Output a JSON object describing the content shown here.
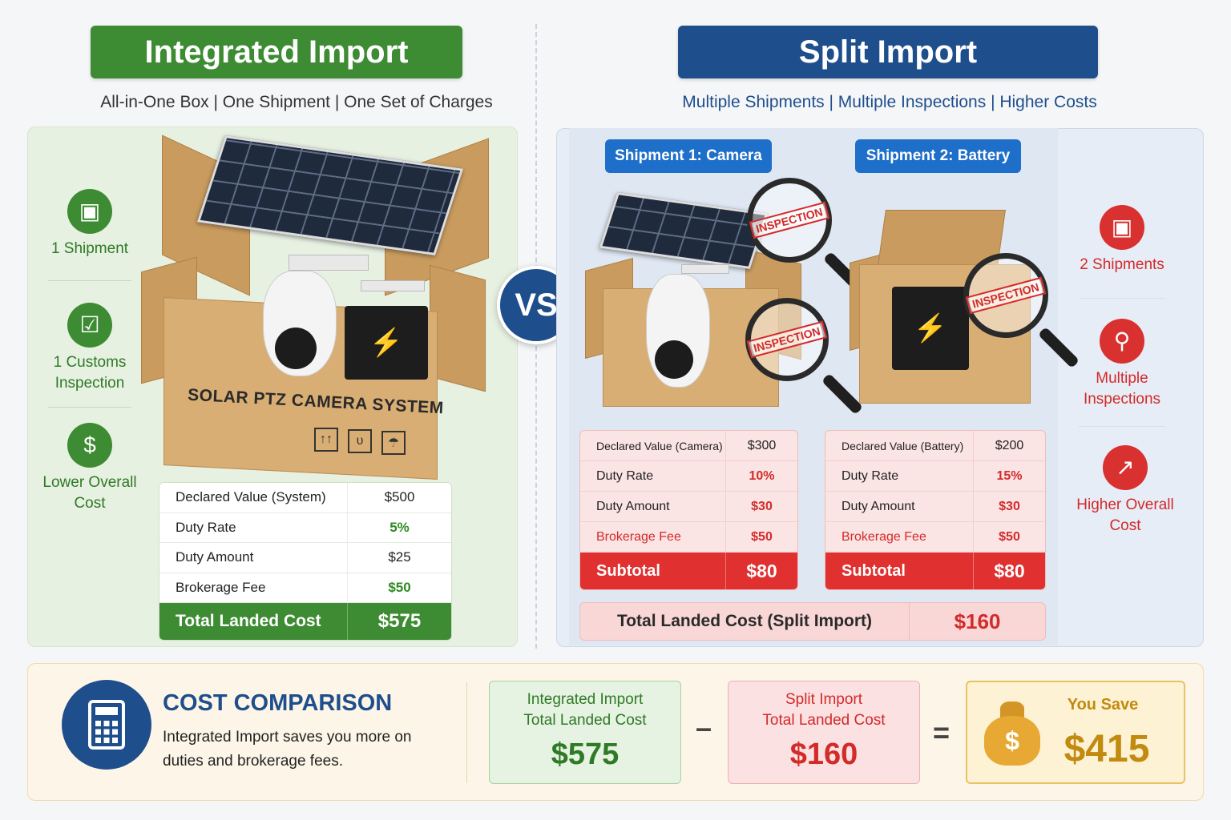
{
  "integrated": {
    "title": "Integrated Import",
    "subtitle": "All-in-One Box | One Shipment | One Set of Charges",
    "features": [
      {
        "icon": "box-icon",
        "label_line1": "1 Shipment",
        "label_line2": ""
      },
      {
        "icon": "clipboard-check-icon",
        "label_line1": "1 Customs",
        "label_line2": "Inspection"
      },
      {
        "icon": "dollar-icon",
        "label_line1": "Lower Overall",
        "label_line2": "Cost"
      }
    ],
    "box_label": "SOLAR PTZ CAMERA SYSTEM",
    "table": {
      "rows": [
        {
          "label": "Declared Value (System)",
          "value": "$500"
        },
        {
          "label": "Duty Rate",
          "value": "5%"
        },
        {
          "label": "Duty Amount",
          "value": "$25"
        },
        {
          "label": "Brokerage Fee",
          "value": "$50"
        }
      ],
      "total_label": "Total Landed Cost",
      "total_value": "$575"
    }
  },
  "vs_label": "VS",
  "split": {
    "title": "Split Import",
    "subtitle": "Multiple Shipments | Multiple Inspections | Higher Costs",
    "inspection_stamp": "INSPECTION",
    "shipment1": {
      "label": "Shipment 1: Camera",
      "rows": [
        {
          "label": "Declared Value (Camera)",
          "value": "$300"
        },
        {
          "label": "Duty Rate",
          "value": "10%"
        },
        {
          "label": "Duty Amount",
          "value": "$30"
        },
        {
          "label": "Brokerage Fee",
          "value": "$50"
        }
      ],
      "subtotal_label": "Subtotal",
      "subtotal_value": "$80"
    },
    "shipment2": {
      "label": "Shipment 2: Battery",
      "rows": [
        {
          "label": "Declared Value (Battery)",
          "value": "$200"
        },
        {
          "label": "Duty Rate",
          "value": "15%"
        },
        {
          "label": "Duty Amount",
          "value": "$30"
        },
        {
          "label": "Brokerage Fee",
          "value": "$50"
        }
      ],
      "subtotal_label": "Subtotal",
      "subtotal_value": "$80"
    },
    "total_label": "Total Landed Cost (Split Import)",
    "total_value": "$160",
    "features": [
      {
        "icon": "box-icon",
        "label_line1": "2 Shipments",
        "label_line2": ""
      },
      {
        "icon": "inspector-icon",
        "label_line1": "Multiple",
        "label_line2": "Inspections"
      },
      {
        "icon": "rising-chart-icon",
        "label_line1": "Higher Overall",
        "label_line2": "Cost"
      }
    ]
  },
  "comparison": {
    "title": "COST COMPARISON",
    "description": "Integrated Import saves you more on duties and brokerage fees.",
    "integrated_line1": "Integrated Import",
    "integrated_line2": "Total Landed Cost",
    "integrated_value": "$575",
    "minus": "–",
    "split_line1": "Split Import",
    "split_line2": "Total Landed Cost",
    "split_value": "$160",
    "equals": "=",
    "save_label": "You Save",
    "save_value": "$415",
    "bag_symbol": "$"
  },
  "colors": {
    "green": "#3d8b32",
    "blue": "#1f4e8c",
    "red": "#d93030",
    "gold": "#c28a0f"
  }
}
